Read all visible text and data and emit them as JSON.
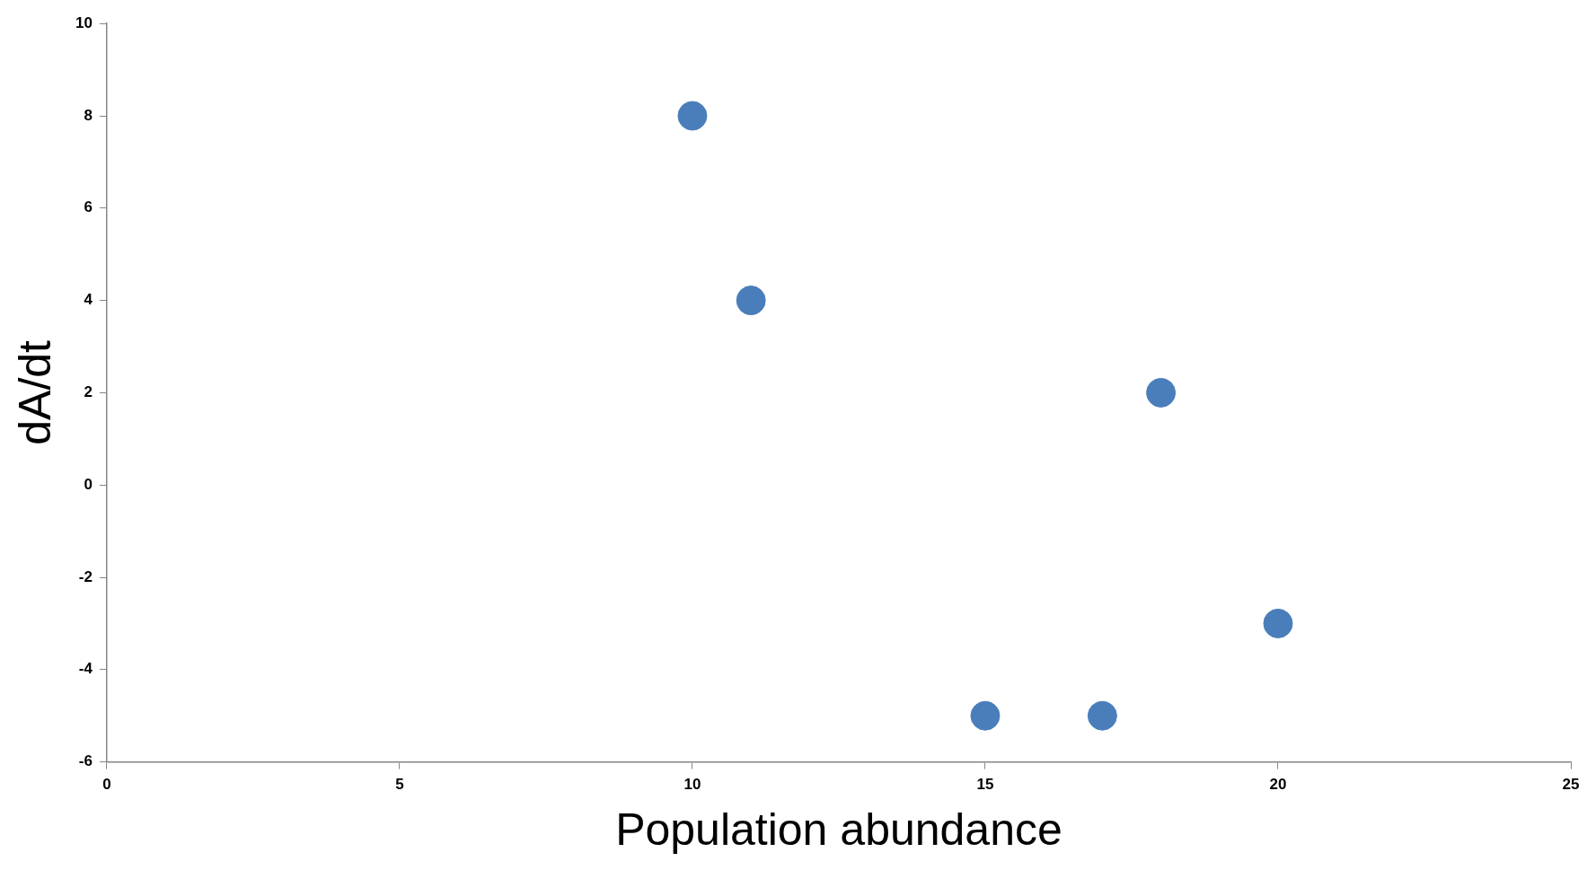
{
  "chart_data": {
    "type": "scatter",
    "xlabel": "Population abundance",
    "ylabel": "dA/dt",
    "x": [
      10,
      11,
      15,
      17,
      18,
      20
    ],
    "series": [
      {
        "color": "#4a7ebb",
        "values": [
          8,
          4,
          -5,
          -5,
          2,
          -3
        ]
      }
    ],
    "xlim": [
      0,
      25
    ],
    "xticks": [
      0,
      5,
      10,
      15,
      20,
      25
    ],
    "ylim": [
      -6,
      10
    ],
    "yticks": [
      -6,
      -4,
      -2,
      0,
      2,
      4,
      6,
      8,
      10
    ],
    "marker": "circle",
    "legend": false
  }
}
